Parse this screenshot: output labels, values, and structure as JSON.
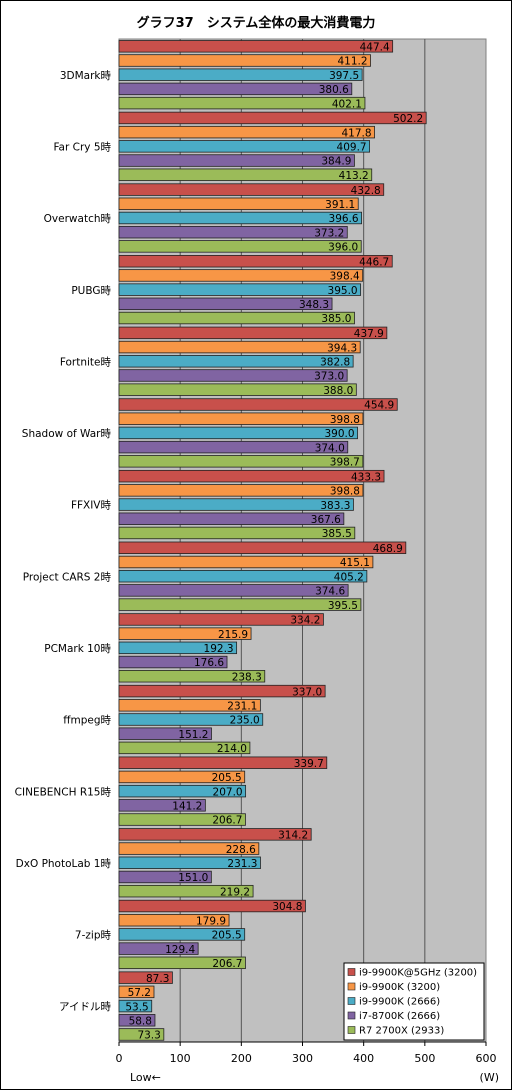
{
  "chart_data": {
    "type": "bar",
    "orientation": "horizontal",
    "title": "グラフ37　システム全体の最大消費電力",
    "unit_label": "(W)",
    "low_label": "Low←",
    "xlim": [
      0,
      600
    ],
    "xticks": [
      0,
      100,
      200,
      300,
      400,
      500,
      600
    ],
    "grid": true,
    "legend_position": "bottom-right",
    "categories": [
      "3DMark時",
      "Far Cry 5時",
      "Overwatch時",
      "PUBG時",
      "Fortnite時",
      "Shadow of War時",
      "FFXIV時",
      "Project CARS 2時",
      "PCMark 10時",
      "ffmpeg時",
      "CINEBENCH R15時",
      "DxO PhotoLab 1時",
      "7-zip時",
      "アイドル時"
    ],
    "series": [
      {
        "name": "i9-9900K@5GHz (3200)",
        "color": "#c8504b",
        "values": [
          447.4,
          502.2,
          432.8,
          446.7,
          437.9,
          454.9,
          433.3,
          468.9,
          334.2,
          337.0,
          339.7,
          314.2,
          304.8,
          87.3
        ]
      },
      {
        "name": "i9-9900K (3200)",
        "color": "#f79646",
        "values": [
          411.2,
          417.8,
          391.1,
          398.4,
          394.3,
          398.8,
          398.8,
          415.1,
          215.9,
          231.1,
          205.5,
          228.6,
          179.9,
          57.2
        ]
      },
      {
        "name": "i9-9900K (2666)",
        "color": "#4bacc6",
        "values": [
          397.5,
          409.7,
          396.6,
          395.0,
          382.8,
          390.0,
          383.3,
          405.2,
          192.3,
          235.0,
          207.0,
          231.3,
          205.5,
          53.5
        ]
      },
      {
        "name": "i7-8700K (2666)",
        "color": "#8064a2",
        "values": [
          380.6,
          384.9,
          373.2,
          348.3,
          373.0,
          374.0,
          367.6,
          374.6,
          176.6,
          151.2,
          141.2,
          151.0,
          129.4,
          58.8
        ]
      },
      {
        "name": "R7 2700X (2933)",
        "color": "#9bbb59",
        "values": [
          402.1,
          413.2,
          396.0,
          385.0,
          388.0,
          398.7,
          385.5,
          395.5,
          238.3,
          214.0,
          206.7,
          219.2,
          206.7,
          73.3
        ]
      }
    ]
  }
}
